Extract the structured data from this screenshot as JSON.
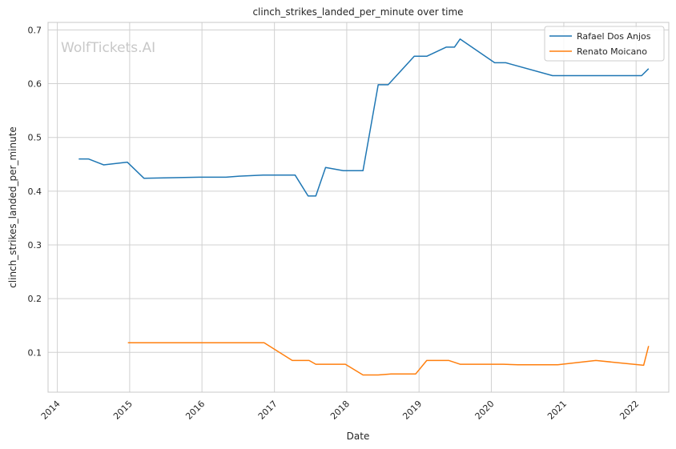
{
  "chart_data": {
    "type": "line",
    "title": "clinch_strikes_landed_per_minute over time",
    "xlabel": "Date",
    "ylabel": "clinch_strikes_landed_per_minute",
    "watermark": "WolfTickets.AI",
    "xlim": [
      "2013-11-15",
      "2022-06-15"
    ],
    "ylim": [
      0.026,
      0.714
    ],
    "x_ticks": [
      "2014",
      "2015",
      "2016",
      "2017",
      "2018",
      "2019",
      "2020",
      "2021",
      "2022"
    ],
    "y_ticks": [
      "0.1",
      "0.2",
      "0.3",
      "0.4",
      "0.5",
      "0.6",
      "0.7"
    ],
    "grid": true,
    "legend_position": "top-right",
    "colors": {
      "Rafael Dos Anjos": "#1f77b4",
      "Renato Moicano": "#ff7f0e",
      "grid": "#d0d0d0",
      "frame": "#c8c8c8"
    },
    "series": [
      {
        "name": "Rafael Dos Anjos",
        "color": "#1f77b4",
        "points": [
          [
            "2014-04-19",
            0.46
          ],
          [
            "2014-06-07",
            0.46
          ],
          [
            "2014-08-23",
            0.449
          ],
          [
            "2014-12-20",
            0.454
          ],
          [
            "2015-03-14",
            0.424
          ],
          [
            "2015-12-19",
            0.426
          ],
          [
            "2016-05-01",
            0.426
          ],
          [
            "2016-07-07",
            0.428
          ],
          [
            "2016-11-05",
            0.43
          ],
          [
            "2017-03-04",
            0.43
          ],
          [
            "2017-04-15",
            0.43
          ],
          [
            "2017-06-20",
            0.391
          ],
          [
            "2017-07-29",
            0.391
          ],
          [
            "2017-09-16",
            0.444
          ],
          [
            "2017-12-15",
            0.438
          ],
          [
            "2018-03-24",
            0.438
          ],
          [
            "2018-06-09",
            0.598
          ],
          [
            "2018-07-29",
            0.598
          ],
          [
            "2018-12-08",
            0.651
          ],
          [
            "2019-02-09",
            0.651
          ],
          [
            "2019-05-18",
            0.668
          ],
          [
            "2019-06-29",
            0.668
          ],
          [
            "2019-07-27",
            0.683
          ],
          [
            "2020-01-18",
            0.639
          ],
          [
            "2020-03-14",
            0.639
          ],
          [
            "2020-11-05",
            0.615
          ],
          [
            "2021-05-01",
            0.615
          ],
          [
            "2022-01-29",
            0.615
          ],
          [
            "2022-03-05",
            0.628
          ]
        ]
      },
      {
        "name": "Renato Moicano",
        "color": "#ff7f0e",
        "points": [
          [
            "2014-12-23",
            0.118
          ],
          [
            "2016-11-10",
            0.118
          ],
          [
            "2017-04-01",
            0.085
          ],
          [
            "2017-06-25",
            0.085
          ],
          [
            "2017-07-29",
            0.078
          ],
          [
            "2017-12-25",
            0.078
          ],
          [
            "2018-03-24",
            0.058
          ],
          [
            "2018-06-09",
            0.058
          ],
          [
            "2018-08-13",
            0.06
          ],
          [
            "2018-12-15",
            0.06
          ],
          [
            "2019-02-09",
            0.085
          ],
          [
            "2019-06-01",
            0.085
          ],
          [
            "2019-07-27",
            0.078
          ],
          [
            "2020-03-01",
            0.078
          ],
          [
            "2020-05-15",
            0.077
          ],
          [
            "2020-12-01",
            0.077
          ],
          [
            "2021-06-12",
            0.085
          ],
          [
            "2022-02-08",
            0.076
          ],
          [
            "2022-03-05",
            0.112
          ]
        ]
      }
    ]
  }
}
